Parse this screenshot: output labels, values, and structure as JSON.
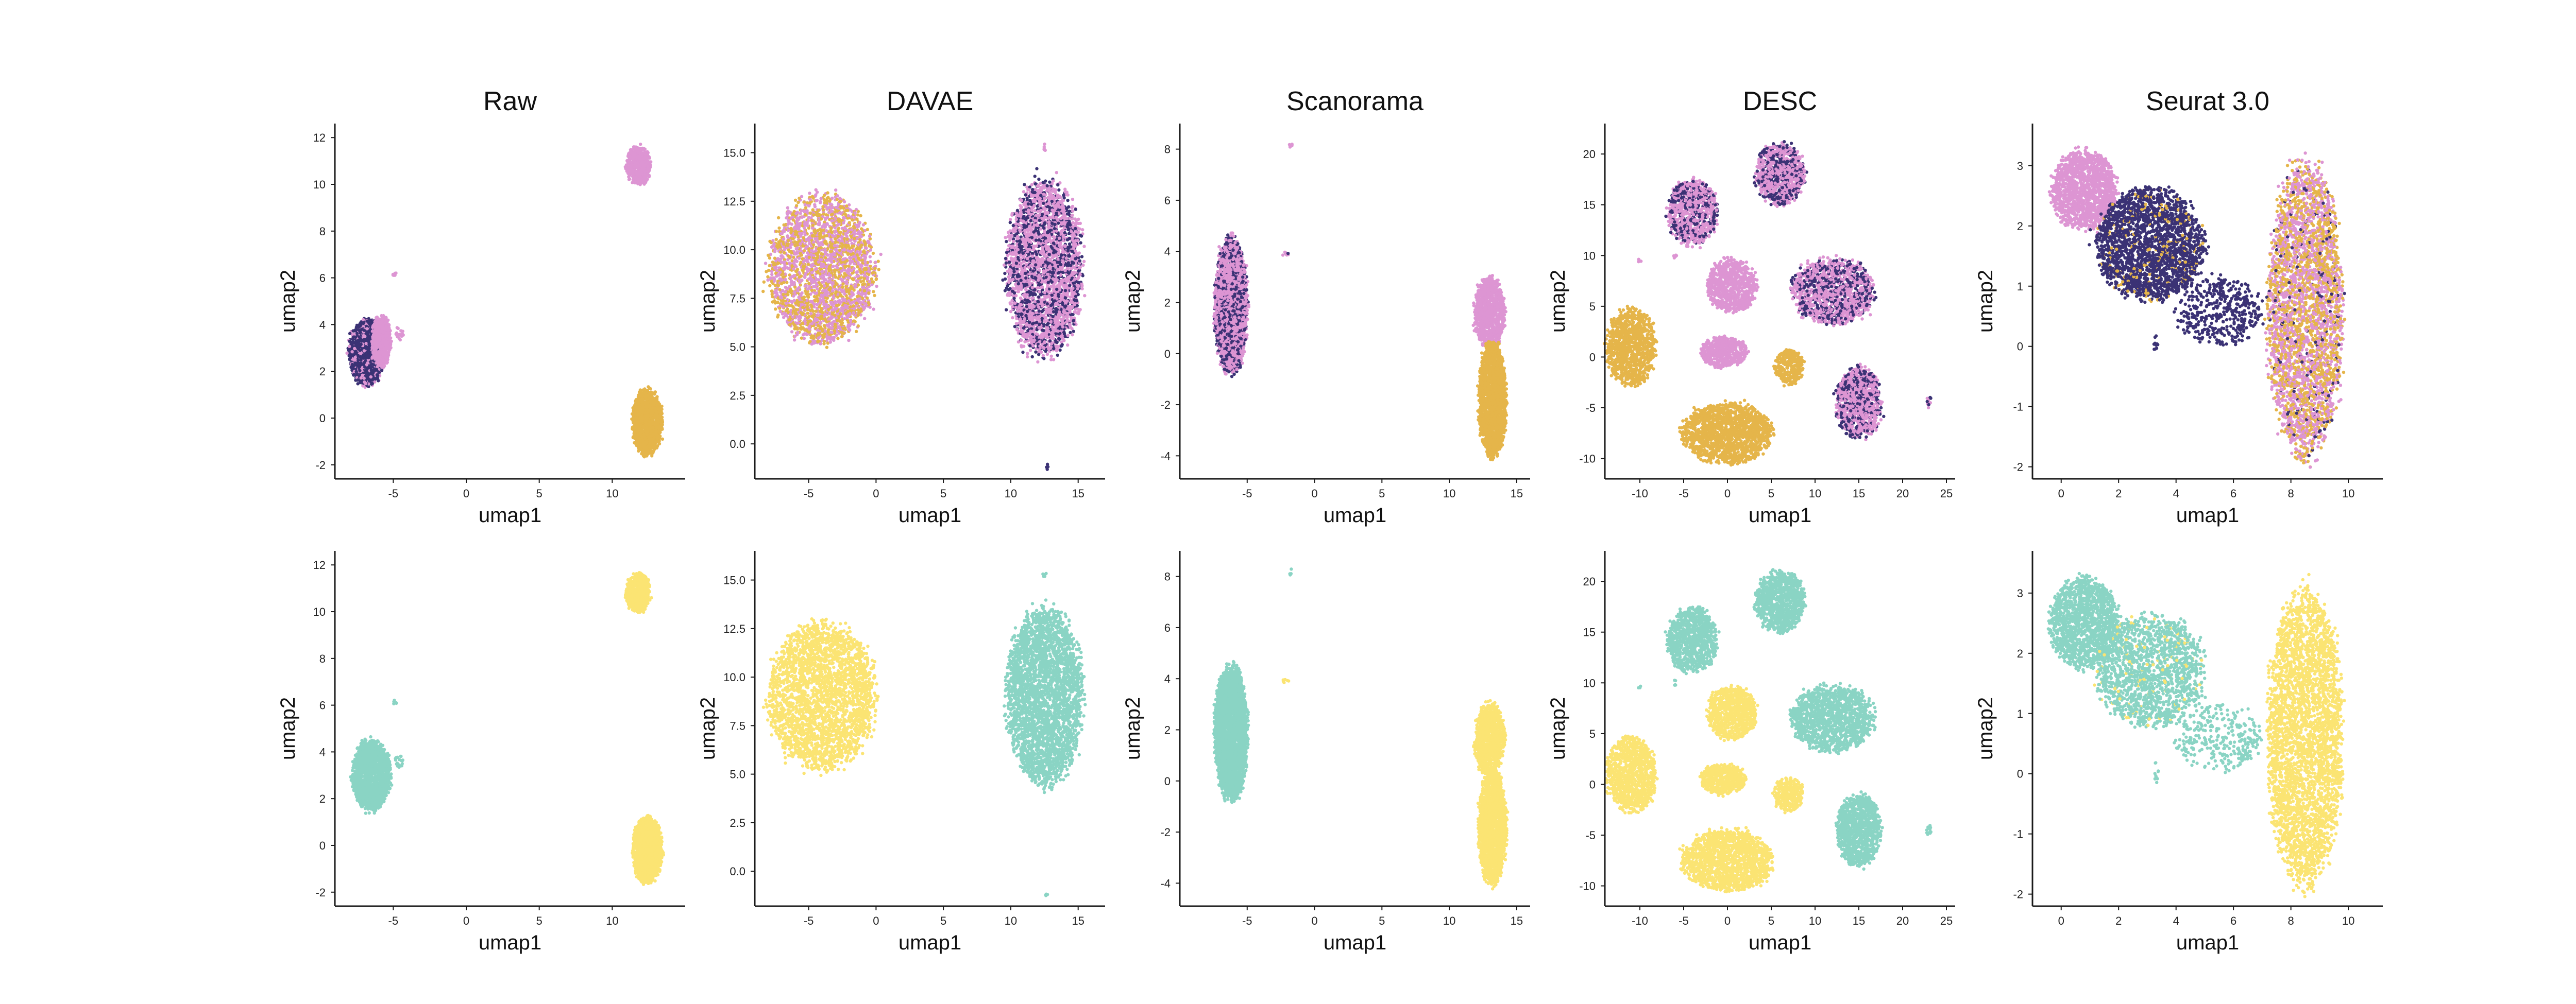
{
  "figure": {
    "xlabel": "umap1",
    "ylabel": "umap2",
    "colors": {
      "batch_a": "#3b3275",
      "batch_b": "#dd95d3",
      "batch_c": "#e5b54a",
      "type_1": "#8ad4c4",
      "type_2": "#fbe473"
    }
  },
  "chart_data": [
    {
      "type": "scatter",
      "row": "top",
      "title": "Raw",
      "xlim": [
        -9,
        15
      ],
      "ylim": [
        -2.6,
        12.6
      ],
      "xticks": [
        -5,
        0,
        5,
        10
      ],
      "yticks": [
        -2,
        0,
        2,
        4,
        6,
        8,
        10,
        12
      ],
      "clusters": [
        {
          "cx": -6.8,
          "cy": 2.8,
          "rx": 1.3,
          "ry": 1.5,
          "n": 1400,
          "mix": {
            "batch_a": 0.75,
            "batch_b": 0.25
          }
        },
        {
          "cx": -5.8,
          "cy": 3.3,
          "rx": 0.7,
          "ry": 1.2,
          "n": 500,
          "mix": {
            "batch_b": 1.0
          }
        },
        {
          "cx": -4.6,
          "cy": 3.6,
          "rx": 0.3,
          "ry": 0.3,
          "n": 20,
          "mix": {
            "batch_b": 1.0
          }
        },
        {
          "cx": -4.9,
          "cy": 6.1,
          "rx": 0.15,
          "ry": 0.15,
          "n": 6,
          "mix": {
            "batch_b": 1.0
          }
        },
        {
          "cx": 11.8,
          "cy": 10.8,
          "rx": 0.9,
          "ry": 0.9,
          "n": 550,
          "mix": {
            "batch_b": 1.0
          }
        },
        {
          "cx": 12.4,
          "cy": -0.2,
          "rx": 1.1,
          "ry": 1.5,
          "n": 1300,
          "mix": {
            "batch_c": 1.0
          }
        }
      ]
    },
    {
      "type": "scatter",
      "row": "top",
      "title": "DAVAE",
      "xlim": [
        -9,
        17
      ],
      "ylim": [
        -1.8,
        16.5
      ],
      "xticks": [
        -5,
        0,
        5,
        10,
        15
      ],
      "yticks": [
        0.0,
        2.5,
        5.0,
        7.5,
        10.0,
        12.5,
        15.0
      ],
      "clusters": [
        {
          "cx": -4.0,
          "cy": 9.0,
          "rx": 4.2,
          "ry": 4.0,
          "n": 2600,
          "mix": {
            "batch_b": 0.55,
            "batch_c": 0.45
          }
        },
        {
          "cx": 12.5,
          "cy": 9.0,
          "rx": 3.0,
          "ry": 4.8,
          "n": 3000,
          "mix": {
            "batch_a": 0.35,
            "batch_b": 0.65
          }
        },
        {
          "cx": 12.5,
          "cy": 15.3,
          "rx": 0.15,
          "ry": 0.2,
          "n": 5,
          "mix": {
            "batch_b": 1.0
          }
        },
        {
          "cx": 12.7,
          "cy": -1.2,
          "rx": 0.15,
          "ry": 0.15,
          "n": 4,
          "mix": {
            "batch_a": 1.0
          }
        }
      ]
    },
    {
      "type": "scatter",
      "row": "top",
      "title": "Scanorama",
      "xlim": [
        -10,
        16
      ],
      "ylim": [
        -4.9,
        9.0
      ],
      "xticks": [
        -5,
        0,
        5,
        10,
        15
      ],
      "yticks": [
        -4,
        -2,
        0,
        2,
        4,
        6,
        8
      ],
      "clusters": [
        {
          "cx": -6.2,
          "cy": 1.9,
          "rx": 1.3,
          "ry": 2.8,
          "n": 2800,
          "mix": {
            "batch_a": 0.35,
            "batch_b": 0.65
          }
        },
        {
          "cx": -2.2,
          "cy": 3.9,
          "rx": 0.3,
          "ry": 0.1,
          "n": 8,
          "mix": {
            "batch_a": 0.5,
            "batch_b": 0.5
          }
        },
        {
          "cx": -1.8,
          "cy": 8.2,
          "rx": 0.15,
          "ry": 0.15,
          "n": 4,
          "mix": {
            "batch_b": 1.0
          }
        },
        {
          "cx": 13.0,
          "cy": 1.6,
          "rx": 1.2,
          "ry": 1.5,
          "n": 900,
          "mix": {
            "batch_b": 1.0
          }
        },
        {
          "cx": 13.2,
          "cy": -1.8,
          "rx": 1.1,
          "ry": 2.4,
          "n": 1800,
          "mix": {
            "batch_c": 1.0
          }
        }
      ]
    },
    {
      "type": "scatter",
      "row": "top",
      "title": "DESC",
      "xlim": [
        -14,
        26
      ],
      "ylim": [
        -12,
        23
      ],
      "xticks": [
        -10,
        -5,
        0,
        5,
        10,
        15,
        20,
        25
      ],
      "yticks": [
        -10,
        -5,
        0,
        5,
        10,
        15,
        20
      ],
      "clusters": [
        {
          "cx": -4.0,
          "cy": 14.2,
          "rx": 3.0,
          "ry": 3.5,
          "n": 900,
          "mix": {
            "batch_a": 0.35,
            "batch_b": 0.65
          }
        },
        {
          "cx": 6.0,
          "cy": 18.0,
          "rx": 3.0,
          "ry": 3.2,
          "n": 900,
          "mix": {
            "batch_a": 0.35,
            "batch_b": 0.65
          }
        },
        {
          "cx": 0.5,
          "cy": 7.0,
          "rx": 3.0,
          "ry": 2.8,
          "n": 750,
          "mix": {
            "batch_b": 1.0
          }
        },
        {
          "cx": 12.0,
          "cy": 6.5,
          "rx": 5.0,
          "ry": 3.5,
          "n": 1300,
          "mix": {
            "batch_a": 0.35,
            "batch_b": 0.65
          }
        },
        {
          "cx": -11.0,
          "cy": 1.0,
          "rx": 3.0,
          "ry": 4.0,
          "n": 1000,
          "mix": {
            "batch_c": 1.0
          }
        },
        {
          "cx": -0.5,
          "cy": 0.5,
          "rx": 2.8,
          "ry": 1.6,
          "n": 500,
          "mix": {
            "batch_b": 1.0
          }
        },
        {
          "cx": 7.0,
          "cy": -1.0,
          "rx": 1.8,
          "ry": 1.8,
          "n": 300,
          "mix": {
            "batch_c": 1.0
          }
        },
        {
          "cx": 15.0,
          "cy": -4.5,
          "rx": 2.7,
          "ry": 3.8,
          "n": 1000,
          "mix": {
            "batch_a": 0.35,
            "batch_b": 0.65
          }
        },
        {
          "cx": 0.0,
          "cy": -7.5,
          "rx": 5.5,
          "ry": 3.2,
          "n": 1500,
          "mix": {
            "batch_c": 1.0
          }
        },
        {
          "cx": 23.0,
          "cy": -4.5,
          "rx": 0.3,
          "ry": 0.6,
          "n": 12,
          "mix": {
            "batch_a": 0.5,
            "batch_b": 0.5
          }
        },
        {
          "cx": -6.0,
          "cy": 10.0,
          "rx": 0.2,
          "ry": 0.3,
          "n": 5,
          "mix": {
            "batch_b": 1.0
          }
        },
        {
          "cx": -10.0,
          "cy": 9.5,
          "rx": 0.2,
          "ry": 0.3,
          "n": 4,
          "mix": {
            "batch_b": 1.0
          }
        }
      ]
    },
    {
      "type": "scatter",
      "row": "top",
      "title": "Seurat 3.0",
      "xlim": [
        -1,
        11.2
      ],
      "ylim": [
        -2.2,
        3.7
      ],
      "xticks": [
        0,
        2,
        4,
        6,
        8,
        10
      ],
      "yticks": [
        -2,
        -1,
        0,
        1,
        2,
        3
      ],
      "clusters": [
        {
          "cx": 0.8,
          "cy": 2.6,
          "rx": 1.2,
          "ry": 0.7,
          "n": 1400,
          "mix": {
            "batch_b": 1.0
          }
        },
        {
          "cx": 3.1,
          "cy": 1.7,
          "rx": 2.0,
          "ry": 1.0,
          "n": 2200,
          "mix": {
            "batch_a": 0.92,
            "batch_c": 0.08
          }
        },
        {
          "cx": 5.5,
          "cy": 0.6,
          "rx": 1.6,
          "ry": 0.6,
          "n": 400,
          "mix": {
            "batch_a": 1.0
          }
        },
        {
          "cx": 8.5,
          "cy": 0.6,
          "rx": 1.4,
          "ry": 2.6,
          "n": 3400,
          "mix": {
            "batch_b": 0.5,
            "batch_c": 0.45,
            "batch_a": 0.05
          }
        },
        {
          "cx": 3.3,
          "cy": 0.0,
          "rx": 0.1,
          "ry": 0.2,
          "n": 10,
          "mix": {
            "batch_a": 1.0
          }
        }
      ]
    },
    {
      "type": "scatter",
      "row": "bottom",
      "title": "",
      "xlim": [
        -9,
        15
      ],
      "ylim": [
        -2.6,
        12.6
      ],
      "xticks": [
        -5,
        0,
        5,
        10
      ],
      "yticks": [
        -2,
        0,
        2,
        4,
        6,
        8,
        10,
        12
      ],
      "clusters": [
        {
          "cx": -6.5,
          "cy": 3.0,
          "rx": 1.4,
          "ry": 1.6,
          "n": 1600,
          "mix": {
            "type_1": 1.0
          }
        },
        {
          "cx": -4.6,
          "cy": 3.6,
          "rx": 0.3,
          "ry": 0.3,
          "n": 20,
          "mix": {
            "type_1": 1.0
          }
        },
        {
          "cx": -4.9,
          "cy": 6.1,
          "rx": 0.15,
          "ry": 0.15,
          "n": 6,
          "mix": {
            "type_1": 1.0
          }
        },
        {
          "cx": 11.8,
          "cy": 10.8,
          "rx": 0.9,
          "ry": 0.9,
          "n": 550,
          "mix": {
            "type_2": 1.0
          }
        },
        {
          "cx": 12.4,
          "cy": -0.2,
          "rx": 1.1,
          "ry": 1.5,
          "n": 1300,
          "mix": {
            "type_2": 1.0
          }
        }
      ]
    },
    {
      "type": "scatter",
      "row": "bottom",
      "title": "",
      "xlim": [
        -9,
        17
      ],
      "ylim": [
        -1.8,
        16.5
      ],
      "xticks": [
        -5,
        0,
        5,
        10,
        15
      ],
      "yticks": [
        0.0,
        2.5,
        5.0,
        7.5,
        10.0,
        12.5,
        15.0
      ],
      "clusters": [
        {
          "cx": -4.0,
          "cy": 9.0,
          "rx": 4.2,
          "ry": 4.0,
          "n": 2600,
          "mix": {
            "type_2": 1.0
          }
        },
        {
          "cx": 12.5,
          "cy": 9.0,
          "rx": 3.0,
          "ry": 4.8,
          "n": 3000,
          "mix": {
            "type_1": 1.0
          }
        },
        {
          "cx": 12.5,
          "cy": 15.3,
          "rx": 0.15,
          "ry": 0.2,
          "n": 5,
          "mix": {
            "type_1": 1.0
          }
        },
        {
          "cx": 12.7,
          "cy": -1.2,
          "rx": 0.15,
          "ry": 0.15,
          "n": 4,
          "mix": {
            "type_1": 1.0
          }
        }
      ]
    },
    {
      "type": "scatter",
      "row": "bottom",
      "title": "",
      "xlim": [
        -10,
        16
      ],
      "ylim": [
        -4.9,
        9.0
      ],
      "xticks": [
        -5,
        0,
        5,
        10,
        15
      ],
      "yticks": [
        -4,
        -2,
        0,
        2,
        4,
        6,
        8
      ],
      "clusters": [
        {
          "cx": -6.2,
          "cy": 1.9,
          "rx": 1.3,
          "ry": 2.8,
          "n": 2800,
          "mix": {
            "type_1": 1.0
          }
        },
        {
          "cx": -2.2,
          "cy": 3.9,
          "rx": 0.3,
          "ry": 0.1,
          "n": 8,
          "mix": {
            "type_2": 1.0
          }
        },
        {
          "cx": -1.8,
          "cy": 8.2,
          "rx": 0.15,
          "ry": 0.15,
          "n": 4,
          "mix": {
            "type_1": 1.0
          }
        },
        {
          "cx": 13.0,
          "cy": 1.6,
          "rx": 1.2,
          "ry": 1.5,
          "n": 900,
          "mix": {
            "type_2": 1.0
          }
        },
        {
          "cx": 13.2,
          "cy": -1.8,
          "rx": 1.1,
          "ry": 2.4,
          "n": 1800,
          "mix": {
            "type_2": 1.0
          }
        }
      ]
    },
    {
      "type": "scatter",
      "row": "bottom",
      "title": "",
      "xlim": [
        -14,
        26
      ],
      "ylim": [
        -12,
        23
      ],
      "xticks": [
        -10,
        -5,
        0,
        5,
        10,
        15,
        20,
        25
      ],
      "yticks": [
        -10,
        -5,
        0,
        5,
        10,
        15,
        20
      ],
      "clusters": [
        {
          "cx": -4.0,
          "cy": 14.2,
          "rx": 3.0,
          "ry": 3.5,
          "n": 900,
          "mix": {
            "type_1": 1.0
          }
        },
        {
          "cx": 6.0,
          "cy": 18.0,
          "rx": 3.0,
          "ry": 3.2,
          "n": 900,
          "mix": {
            "type_1": 1.0
          }
        },
        {
          "cx": 0.5,
          "cy": 7.0,
          "rx": 3.0,
          "ry": 2.8,
          "n": 750,
          "mix": {
            "type_2": 1.0
          }
        },
        {
          "cx": 12.0,
          "cy": 6.5,
          "rx": 5.0,
          "ry": 3.5,
          "n": 1300,
          "mix": {
            "type_1": 1.0
          }
        },
        {
          "cx": -11.0,
          "cy": 1.0,
          "rx": 3.0,
          "ry": 4.0,
          "n": 1000,
          "mix": {
            "type_2": 1.0
          }
        },
        {
          "cx": -0.5,
          "cy": 0.5,
          "rx": 2.8,
          "ry": 1.6,
          "n": 500,
          "mix": {
            "type_2": 1.0
          }
        },
        {
          "cx": 7.0,
          "cy": -1.0,
          "rx": 1.8,
          "ry": 1.8,
          "n": 300,
          "mix": {
            "type_2": 1.0
          }
        },
        {
          "cx": 15.0,
          "cy": -4.5,
          "rx": 2.7,
          "ry": 3.8,
          "n": 1000,
          "mix": {
            "type_1": 1.0
          }
        },
        {
          "cx": 0.0,
          "cy": -7.5,
          "rx": 5.5,
          "ry": 3.2,
          "n": 1500,
          "mix": {
            "type_2": 1.0
          }
        },
        {
          "cx": 23.0,
          "cy": -4.5,
          "rx": 0.3,
          "ry": 0.6,
          "n": 12,
          "mix": {
            "type_1": 1.0
          }
        },
        {
          "cx": -6.0,
          "cy": 10.0,
          "rx": 0.2,
          "ry": 0.3,
          "n": 5,
          "mix": {
            "type_1": 1.0
          }
        },
        {
          "cx": -10.0,
          "cy": 9.5,
          "rx": 0.2,
          "ry": 0.3,
          "n": 4,
          "mix": {
            "type_1": 1.0
          }
        }
      ]
    },
    {
      "type": "scatter",
      "row": "bottom",
      "title": "",
      "xlim": [
        -1,
        11.2
      ],
      "ylim": [
        -2.2,
        3.7
      ],
      "xticks": [
        0,
        2,
        4,
        6,
        8,
        10
      ],
      "yticks": [
        -2,
        -1,
        0,
        1,
        2,
        3
      ],
      "clusters": [
        {
          "cx": 0.8,
          "cy": 2.5,
          "rx": 1.3,
          "ry": 0.8,
          "n": 1400,
          "mix": {
            "type_1": 1.0
          }
        },
        {
          "cx": 3.1,
          "cy": 1.7,
          "rx": 2.0,
          "ry": 1.0,
          "n": 1600,
          "mix": {
            "type_1": 0.95,
            "type_2": 0.05
          }
        },
        {
          "cx": 5.5,
          "cy": 0.6,
          "rx": 1.6,
          "ry": 0.6,
          "n": 300,
          "mix": {
            "type_1": 1.0
          }
        },
        {
          "cx": 8.5,
          "cy": 0.6,
          "rx": 1.4,
          "ry": 2.6,
          "n": 3400,
          "mix": {
            "type_2": 1.0
          }
        },
        {
          "cx": 3.3,
          "cy": 0.0,
          "rx": 0.1,
          "ry": 0.2,
          "n": 10,
          "mix": {
            "type_1": 1.0
          }
        }
      ]
    }
  ]
}
